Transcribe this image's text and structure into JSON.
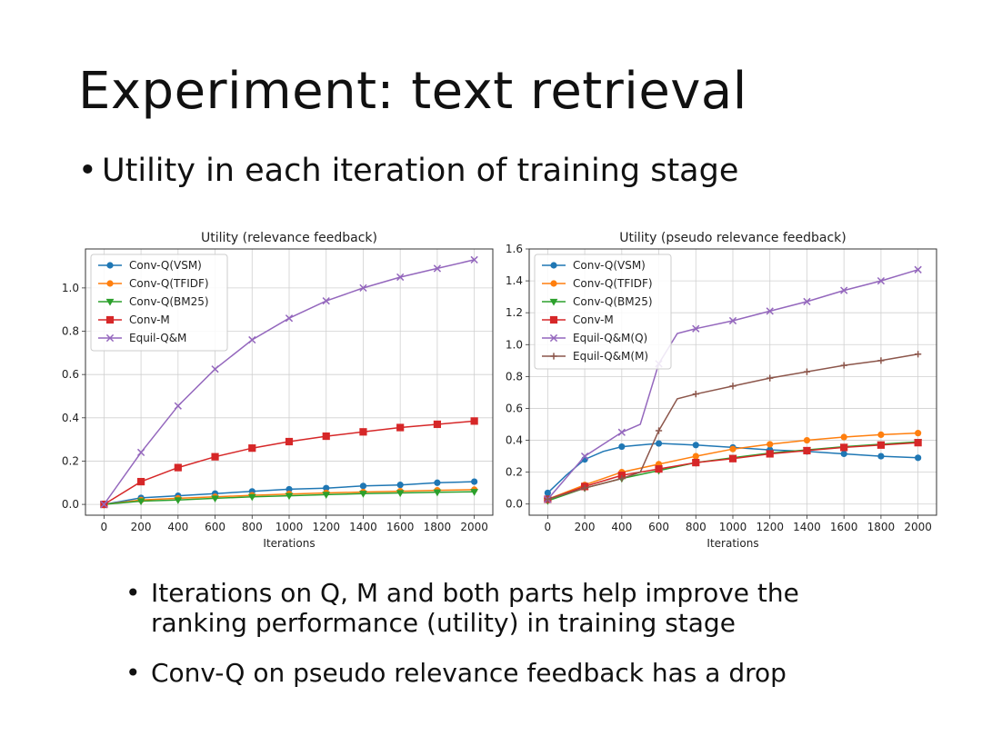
{
  "slide": {
    "title": "Experiment: text retrieval",
    "bullet_main": "Utility in each iteration of training stage",
    "bullet_char": "•",
    "sub_bullets": [
      [
        "Iterations on Q, M and both parts help improve the",
        "ranking performance (utility) in training stage"
      ],
      [
        "Conv-Q on pseudo relevance feedback has a drop"
      ]
    ]
  },
  "chart_data": [
    {
      "type": "line",
      "title": "Utility (relevance feedback)",
      "xlabel": "Iterations",
      "ylabel": "",
      "xlim": [
        -100,
        2100
      ],
      "ylim": [
        -0.05,
        1.18
      ],
      "xticks": [
        0,
        200,
        400,
        600,
        800,
        1000,
        1200,
        1400,
        1600,
        1800,
        2000
      ],
      "yticks": [
        0.0,
        0.2,
        0.4,
        0.6,
        0.8,
        1.0
      ],
      "ytick_labels": [
        "0.0",
        "0.2",
        "0.4",
        "0.6",
        "0.8",
        "1.0"
      ],
      "grid": true,
      "legend": "top-left",
      "series": [
        {
          "name": "Conv-Q(VSM)",
          "color": "#1f77b4",
          "marker": "circle",
          "x": [
            0,
            200,
            400,
            600,
            800,
            1000,
            1200,
            1400,
            1600,
            1800,
            2000
          ],
          "y": [
            0.0,
            0.03,
            0.04,
            0.05,
            0.06,
            0.07,
            0.075,
            0.085,
            0.09,
            0.1,
            0.105
          ]
        },
        {
          "name": "Conv-Q(TFIDF)",
          "color": "#ff7f0e",
          "marker": "circle",
          "x": [
            0,
            200,
            400,
            600,
            800,
            1000,
            1200,
            1400,
            1600,
            1800,
            2000
          ],
          "y": [
            0.0,
            0.02,
            0.028,
            0.035,
            0.042,
            0.048,
            0.053,
            0.057,
            0.061,
            0.065,
            0.068
          ]
        },
        {
          "name": "Conv-Q(BM25)",
          "color": "#2ca02c",
          "marker": "triangle-down",
          "x": [
            0,
            200,
            400,
            600,
            800,
            1000,
            1200,
            1400,
            1600,
            1800,
            2000
          ],
          "y": [
            0.0,
            0.015,
            0.02,
            0.028,
            0.035,
            0.04,
            0.045,
            0.05,
            0.053,
            0.056,
            0.058
          ]
        },
        {
          "name": "Conv-M",
          "color": "#d62728",
          "marker": "square",
          "x": [
            0,
            200,
            400,
            600,
            800,
            1000,
            1200,
            1400,
            1600,
            1800,
            2000
          ],
          "y": [
            0.0,
            0.105,
            0.17,
            0.22,
            0.26,
            0.29,
            0.315,
            0.335,
            0.355,
            0.37,
            0.385
          ]
        },
        {
          "name": "Equil-Q&M",
          "color": "#9467bd",
          "marker": "x",
          "x": [
            0,
            200,
            400,
            600,
            800,
            1000,
            1200,
            1400,
            1600,
            1800,
            2000
          ],
          "y": [
            0.0,
            0.24,
            0.455,
            0.625,
            0.76,
            0.86,
            0.94,
            1.0,
            1.05,
            1.09,
            1.13
          ]
        }
      ]
    },
    {
      "type": "line",
      "title": "Utility (pseudo relevance feedback)",
      "xlabel": "Iterations",
      "ylabel": "",
      "xlim": [
        -100,
        2100
      ],
      "ylim": [
        -0.07,
        1.6
      ],
      "xticks": [
        0,
        200,
        400,
        600,
        800,
        1000,
        1200,
        1400,
        1600,
        1800,
        2000
      ],
      "yticks": [
        0.0,
        0.2,
        0.4,
        0.6,
        0.8,
        1.0,
        1.2,
        1.4,
        1.6
      ],
      "ytick_labels": [
        "0.0",
        "0.2",
        "0.4",
        "0.6",
        "0.8",
        "1.0",
        "1.2",
        "1.4",
        "1.6"
      ],
      "grid": true,
      "legend": "top-left",
      "series": [
        {
          "name": "Conv-Q(VSM)",
          "color": "#1f77b4",
          "marker": "circle",
          "x": [
            0,
            100,
            200,
            300,
            400,
            500,
            600,
            700,
            800,
            1000,
            1200,
            1400,
            1600,
            1800,
            2000
          ],
          "y": [
            0.07,
            0.18,
            0.28,
            0.33,
            0.36,
            0.37,
            0.38,
            0.375,
            0.37,
            0.355,
            0.34,
            0.33,
            0.315,
            0.3,
            0.29
          ]
        },
        {
          "name": "Conv-Q(TFIDF)",
          "color": "#ff7f0e",
          "marker": "circle",
          "x": [
            0,
            200,
            400,
            600,
            800,
            1000,
            1200,
            1400,
            1600,
            1800,
            2000
          ],
          "y": [
            0.03,
            0.12,
            0.2,
            0.25,
            0.3,
            0.345,
            0.375,
            0.4,
            0.42,
            0.435,
            0.445
          ]
        },
        {
          "name": "Conv-Q(BM25)",
          "color": "#2ca02c",
          "marker": "triangle-down",
          "x": [
            0,
            200,
            400,
            600,
            800,
            1000,
            1200,
            1400,
            1600,
            1800,
            2000
          ],
          "y": [
            0.02,
            0.1,
            0.16,
            0.21,
            0.26,
            0.29,
            0.32,
            0.34,
            0.36,
            0.375,
            0.39
          ]
        },
        {
          "name": "Conv-M",
          "color": "#d62728",
          "marker": "square",
          "x": [
            0,
            200,
            400,
            600,
            800,
            1000,
            1200,
            1400,
            1600,
            1800,
            2000
          ],
          "y": [
            0.03,
            0.11,
            0.18,
            0.22,
            0.26,
            0.285,
            0.315,
            0.335,
            0.355,
            0.37,
            0.385
          ]
        },
        {
          "name": "Equil-Q&M(Q)",
          "color": "#9467bd",
          "marker": "x",
          "x": [
            0,
            200,
            400,
            500,
            600,
            700,
            800,
            1000,
            1200,
            1400,
            1600,
            1800,
            2000
          ],
          "y": [
            0.03,
            0.3,
            0.45,
            0.5,
            0.88,
            1.07,
            1.1,
            1.15,
            1.21,
            1.27,
            1.34,
            1.4,
            1.47
          ]
        },
        {
          "name": "Equil-Q&M(M)",
          "color": "#8c564b",
          "marker": "plus",
          "x": [
            0,
            200,
            400,
            500,
            600,
            700,
            800,
            1000,
            1200,
            1400,
            1600,
            1800,
            2000
          ],
          "y": [
            0.03,
            0.1,
            0.16,
            0.2,
            0.46,
            0.66,
            0.69,
            0.74,
            0.79,
            0.83,
            0.87,
            0.9,
            0.94
          ]
        }
      ]
    }
  ]
}
